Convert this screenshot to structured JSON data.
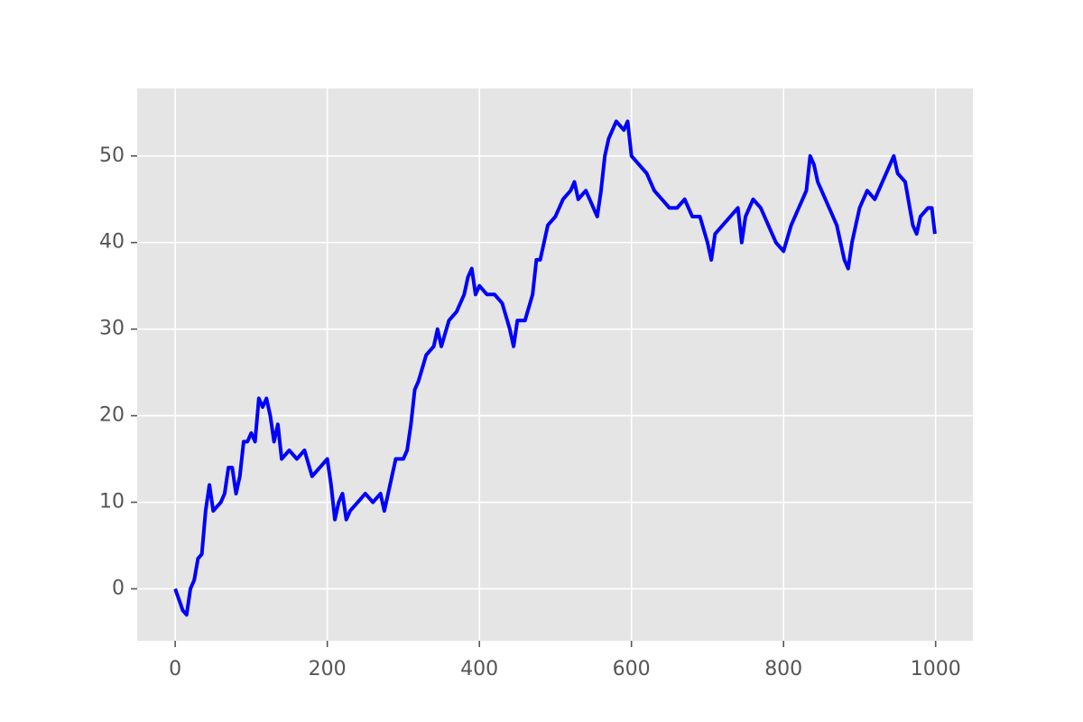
{
  "chart_data": {
    "type": "line",
    "x": [
      0,
      10,
      15,
      20,
      25,
      30,
      35,
      40,
      45,
      50,
      60,
      65,
      70,
      75,
      80,
      85,
      90,
      95,
      100,
      105,
      110,
      115,
      120,
      125,
      130,
      135,
      140,
      150,
      160,
      170,
      180,
      190,
      200,
      205,
      210,
      215,
      220,
      225,
      230,
      240,
      250,
      260,
      270,
      275,
      280,
      290,
      300,
      305,
      310,
      315,
      320,
      330,
      340,
      345,
      350,
      360,
      370,
      380,
      385,
      390,
      395,
      400,
      410,
      420,
      430,
      440,
      445,
      450,
      460,
      470,
      475,
      480,
      490,
      500,
      510,
      520,
      525,
      530,
      540,
      550,
      555,
      560,
      565,
      570,
      580,
      590,
      595,
      600,
      610,
      620,
      630,
      640,
      650,
      660,
      670,
      680,
      690,
      700,
      705,
      710,
      720,
      730,
      740,
      745,
      750,
      760,
      770,
      780,
      790,
      800,
      810,
      820,
      830,
      835,
      840,
      845,
      850,
      860,
      870,
      880,
      885,
      890,
      900,
      910,
      920,
      930,
      940,
      945,
      950,
      960,
      970,
      975,
      980,
      990,
      995,
      999
    ],
    "series": [
      {
        "color": "#0000ff",
        "values": [
          0,
          -2.5,
          -3,
          0,
          1,
          3.5,
          4,
          9,
          12,
          9,
          10,
          11,
          14,
          14,
          11,
          13,
          17,
          17,
          18,
          17,
          22,
          21,
          22,
          20,
          17,
          19,
          15,
          16,
          15,
          16,
          13,
          14,
          15,
          12,
          8,
          10,
          11,
          8,
          9,
          10,
          11,
          10,
          11,
          9,
          11,
          15,
          15,
          16,
          19,
          23,
          24,
          27,
          28,
          30,
          28,
          31,
          32,
          34,
          36,
          37,
          34,
          35,
          34,
          34,
          33,
          30,
          28,
          31,
          31,
          34,
          38,
          38,
          42,
          43,
          45,
          46,
          47,
          45,
          46,
          44,
          43,
          46,
          50,
          52,
          54,
          53,
          54,
          50,
          49,
          48,
          46,
          45,
          44,
          44,
          45,
          43,
          43,
          40,
          38,
          41,
          42,
          43,
          44,
          40,
          43,
          45,
          44,
          42,
          40,
          39,
          42,
          44,
          46,
          50,
          49,
          47,
          46,
          44,
          42,
          38,
          37,
          40,
          44,
          46,
          45,
          47,
          49,
          50,
          48,
          47,
          42,
          41,
          43,
          44,
          44,
          41
        ]
      }
    ],
    "xlim": [
      -50,
      1049
    ],
    "xticks": [
      0,
      200,
      400,
      600,
      800,
      1000
    ],
    "ylim": [
      -6,
      57.8
    ],
    "yticks": [
      0,
      10,
      20,
      30,
      40,
      50
    ],
    "grid": true
  }
}
